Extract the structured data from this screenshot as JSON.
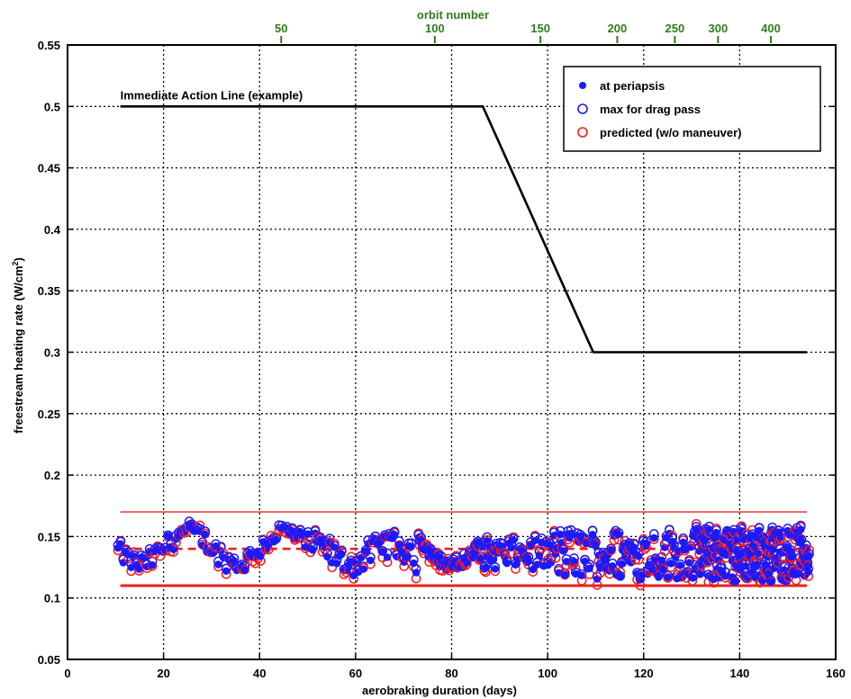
{
  "chart_data": {
    "type": "scatter",
    "xlabel": "aerobraking duration (days)",
    "ylabel": "freestream heating rate (W/cm",
    "ylabel_sup": "2",
    "ylabel_end": ")",
    "top_axis_label": "orbit number",
    "xlim": [
      0,
      160
    ],
    "ylim": [
      0.05,
      0.55
    ],
    "x_ticks": [
      0,
      20,
      40,
      60,
      80,
      100,
      120,
      140,
      160
    ],
    "x_tick_labels": [
      "0",
      "20",
      "40",
      "60",
      "80",
      "100",
      "120",
      "140",
      "160"
    ],
    "y_ticks": [
      0.05,
      0.1,
      0.15,
      0.2,
      0.25,
      0.3,
      0.35,
      0.4,
      0.45,
      0.5,
      0.55
    ],
    "y_tick_labels": [
      "0.05",
      "0.1",
      "0.15",
      "0.2",
      "0.25",
      "0.3",
      "0.35",
      "0.4",
      "0.45",
      "0.5",
      "0.55"
    ],
    "top_ticks": [
      {
        "label": "50",
        "day": 44.5
      },
      {
        "label": "100",
        "day": 76.5
      },
      {
        "label": "150",
        "day": 98.5
      },
      {
        "label": "200",
        "day": 114.5
      },
      {
        "label": "250",
        "day": 126.5
      },
      {
        "label": "300",
        "day": 135.5
      },
      {
        "label": "400",
        "day": 146.5
      }
    ],
    "grid": true,
    "legend_position": "top-right",
    "immediate_action_line": {
      "label": "Immediate Action Line (example)",
      "x": [
        11,
        86.5,
        109.5,
        154
      ],
      "y": [
        0.5,
        0.5,
        0.3,
        0.3
      ],
      "color": "#000000"
    },
    "reference_lines": [
      {
        "style": "solid-thin",
        "y": 0.17,
        "x": [
          11,
          154
        ],
        "color": "#f06060"
      },
      {
        "style": "dashed",
        "y": 0.14,
        "x": [
          11,
          154
        ],
        "color": "#e82020"
      },
      {
        "style": "solid-thick",
        "y": 0.11,
        "x": [
          11,
          154
        ],
        "color": "#e82020"
      }
    ],
    "series": [
      {
        "name": "at periapsis",
        "marker": "filled-dot",
        "color": "#1a1aff"
      },
      {
        "name": "max for drag pass",
        "marker": "open-circle",
        "color": "#1a1aff"
      },
      {
        "name": "predicted (w/o maneuver)",
        "marker": "open-circle",
        "color": "#ff1a1a"
      }
    ]
  }
}
